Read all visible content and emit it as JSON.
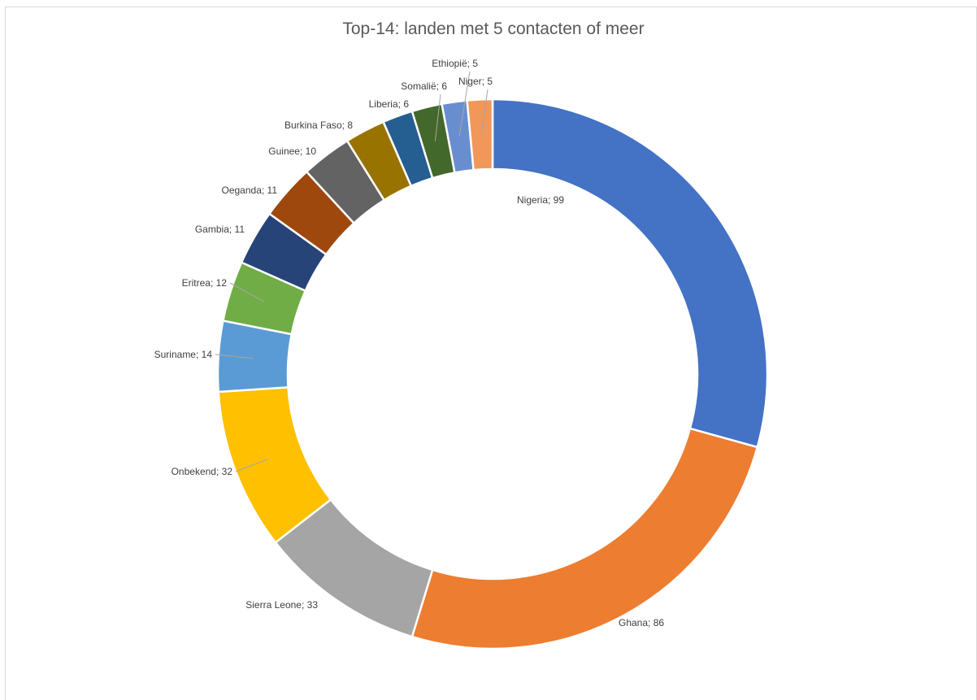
{
  "chart_data": {
    "type": "pie",
    "variant": "doughnut",
    "title": "Top-14: landen met 5 contacten of meer",
    "label_format": "{category}; {value}",
    "categories": [
      "Nigeria",
      "Ghana",
      "Sierra Leone",
      "Onbekend",
      "Suriname",
      "Eritrea",
      "Gambia",
      "Oeganda",
      "Guinee",
      "Burkina Faso",
      "Liberia",
      "Somalië",
      "Ethiopië",
      "Niger"
    ],
    "values": [
      99,
      86,
      33,
      32,
      14,
      12,
      11,
      11,
      10,
      8,
      6,
      6,
      5,
      5
    ],
    "labels": [
      "Nigeria; 99",
      "Ghana; 86",
      "Sierra Leone; 33",
      "Onbekend; 32",
      "Suriname; 14",
      "Eritrea; 12",
      "Gambia; 11",
      "Oeganda; 11",
      "Guinee; 10",
      "Burkina Faso; 8",
      "Liberia; 6",
      "Somalië; 6",
      "Ethiopië; 5",
      "Niger; 5"
    ],
    "colors": [
      "#4472C4",
      "#ED7D31",
      "#A5A5A5",
      "#FFC000",
      "#5B9BD5",
      "#70AD47",
      "#264478",
      "#9E480E",
      "#636363",
      "#997300",
      "#255E91",
      "#43682B",
      "#698ED0",
      "#F1975A"
    ],
    "legend": "none",
    "start_angle": "top"
  }
}
